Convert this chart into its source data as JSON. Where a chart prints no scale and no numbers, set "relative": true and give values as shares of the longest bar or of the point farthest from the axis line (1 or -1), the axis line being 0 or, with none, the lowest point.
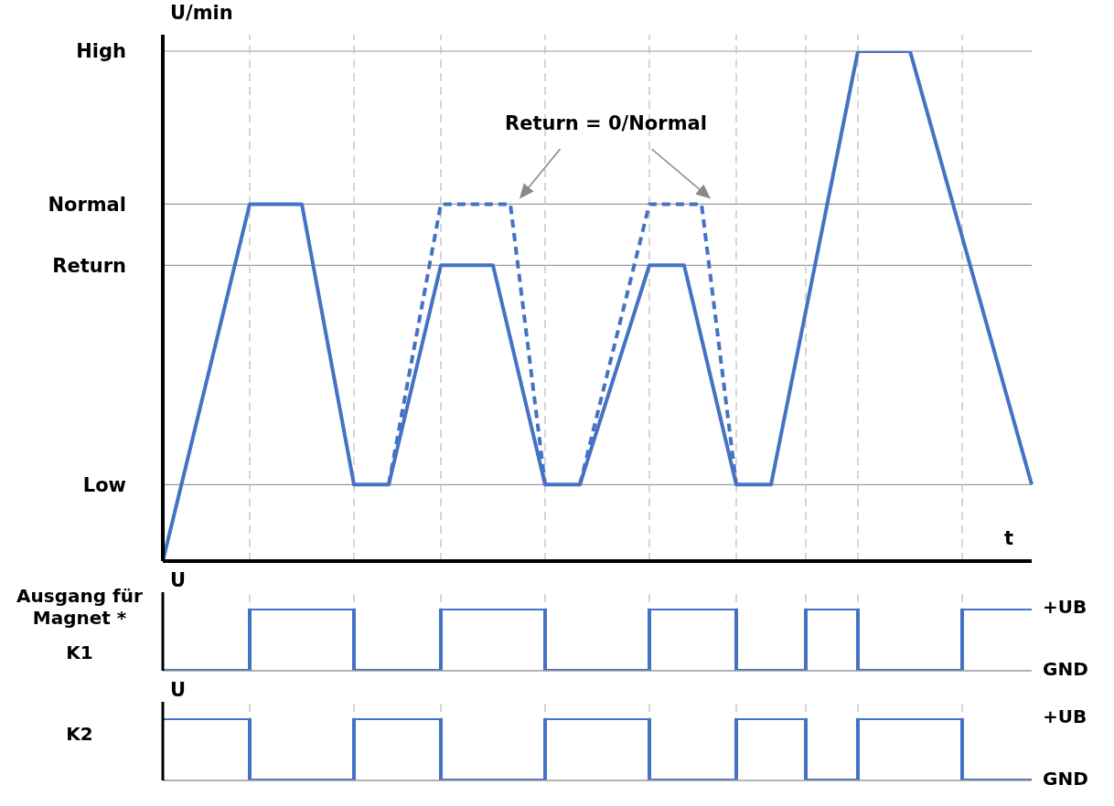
{
  "chart_data": [
    {
      "type": "line",
      "relative": true,
      "ylabel": "U/min",
      "xlabel": "t",
      "marker": "none",
      "tick_labels": false,
      "grid": "x",
      "categories": [
        null,
        null,
        null,
        null,
        null,
        null,
        null,
        null,
        null,
        null,
        null,
        null,
        null,
        null,
        null,
        null,
        null,
        null,
        null,
        null,
        null,
        null,
        null,
        null,
        null,
        null,
        null,
        null,
        null,
        null,
        null,
        null,
        null,
        null,
        null,
        null,
        null,
        null,
        null,
        null,
        null,
        null,
        null,
        null,
        null,
        null,
        null,
        null,
        null,
        null,
        null
      ],
      "series": [
        {
          "color": "#4472c4",
          "line_style": "solid",
          "values": [
            0,
            null,
            null,
            null,
            null,
            0.7,
            null,
            null,
            0.7,
            null,
            null,
            0.15,
            null,
            0.15,
            null,
            null,
            0.58,
            null,
            null,
            0.58,
            null,
            null,
            0.15,
            null,
            0.15,
            null,
            null,
            null,
            0.58,
            null,
            0.58,
            null,
            null,
            0.15,
            null,
            0.15,
            null,
            null,
            null,
            null,
            1,
            null,
            null,
            1,
            null,
            null,
            null,
            null,
            null,
            null,
            0.15
          ]
        },
        {
          "color": "#4472c4",
          "line_style": "dashed",
          "values": [
            null,
            null,
            null,
            null,
            null,
            null,
            null,
            null,
            null,
            null,
            null,
            null,
            null,
            0.15,
            null,
            null,
            0.7,
            null,
            null,
            null,
            0.7,
            null,
            0.15,
            null,
            null,
            null,
            null,
            null,
            null,
            null,
            null,
            null,
            null,
            null,
            null,
            null,
            null,
            null,
            null,
            null,
            null,
            null,
            null,
            null,
            null,
            null,
            null,
            null,
            null,
            null,
            null
          ]
        },
        {
          "color": "#4472c4",
          "line_style": "dashed",
          "values": [
            null,
            null,
            null,
            null,
            null,
            null,
            null,
            null,
            null,
            null,
            null,
            null,
            null,
            null,
            null,
            null,
            null,
            null,
            null,
            null,
            null,
            null,
            null,
            null,
            0.15,
            null,
            null,
            null,
            0.7,
            null,
            null,
            0.7,
            null,
            0.15,
            null,
            null,
            null,
            null,
            null,
            null,
            null,
            null,
            null,
            null,
            null,
            null,
            null,
            null,
            null,
            null,
            null
          ]
        }
      ],
      "ref_lines": [
        {
          "axis": "y",
          "value": 1,
          "label": "High",
          "color": "#999999"
        },
        {
          "axis": "y",
          "value": 0.7,
          "label": "Normal",
          "color": "#999999"
        },
        {
          "axis": "y",
          "value": 0.58,
          "label": "Return",
          "color": "#999999"
        },
        {
          "axis": "y",
          "value": 0.15,
          "label": "Low",
          "color": "#999999"
        }
      ],
      "annotations": [
        "Return = 0/Normal"
      ]
    },
    {
      "type": "step",
      "relative": true,
      "ylabel": "U",
      "marker": "none",
      "tick_labels": false,
      "grid": "x",
      "categories": [
        null,
        null,
        null,
        null,
        null,
        null,
        null,
        null,
        null,
        null,
        null,
        null,
        null,
        null,
        null,
        null,
        null,
        null,
        null,
        null,
        null,
        null,
        null,
        null,
        null,
        null,
        null,
        null,
        null,
        null,
        null,
        null,
        null,
        null,
        null,
        null,
        null,
        null,
        null,
        null,
        null,
        null,
        null,
        null,
        null,
        null,
        null,
        null,
        null,
        null,
        null
      ],
      "series": [
        {
          "color": "#4472c4",
          "values": [
            0,
            0,
            0,
            0,
            0,
            1,
            1,
            1,
            1,
            1,
            1,
            0,
            0,
            0,
            0,
            0,
            1,
            1,
            1,
            1,
            1,
            1,
            0,
            0,
            0,
            0,
            0,
            0,
            1,
            1,
            1,
            1,
            1,
            0,
            0,
            0,
            0,
            1,
            1,
            1,
            0,
            0,
            0,
            0,
            0,
            0,
            1,
            1,
            1,
            1,
            1
          ]
        }
      ],
      "annotations": [
        "Ausgang für Magnet *",
        "K1",
        "+UB",
        "GND"
      ]
    },
    {
      "type": "step",
      "relative": true,
      "ylabel": "U",
      "marker": "none",
      "tick_labels": false,
      "grid": "x",
      "categories": [
        null,
        null,
        null,
        null,
        null,
        null,
        null,
        null,
        null,
        null,
        null,
        null,
        null,
        null,
        null,
        null,
        null,
        null,
        null,
        null,
        null,
        null,
        null,
        null,
        null,
        null,
        null,
        null,
        null,
        null,
        null,
        null,
        null,
        null,
        null,
        null,
        null,
        null,
        null,
        null,
        null,
        null,
        null,
        null,
        null,
        null,
        null,
        null,
        null,
        null,
        null
      ],
      "series": [
        {
          "color": "#4472c4",
          "values": [
            1,
            1,
            1,
            1,
            1,
            0,
            0,
            0,
            0,
            0,
            0,
            1,
            1,
            1,
            1,
            1,
            0,
            0,
            0,
            0,
            0,
            0,
            1,
            1,
            1,
            1,
            1,
            1,
            0,
            0,
            0,
            0,
            0,
            1,
            1,
            1,
            1,
            0,
            0,
            0,
            1,
            1,
            1,
            1,
            1,
            1,
            0,
            0,
            0,
            0,
            0
          ]
        }
      ],
      "annotations": [
        "K2",
        "+UB",
        "GND"
      ]
    }
  ]
}
